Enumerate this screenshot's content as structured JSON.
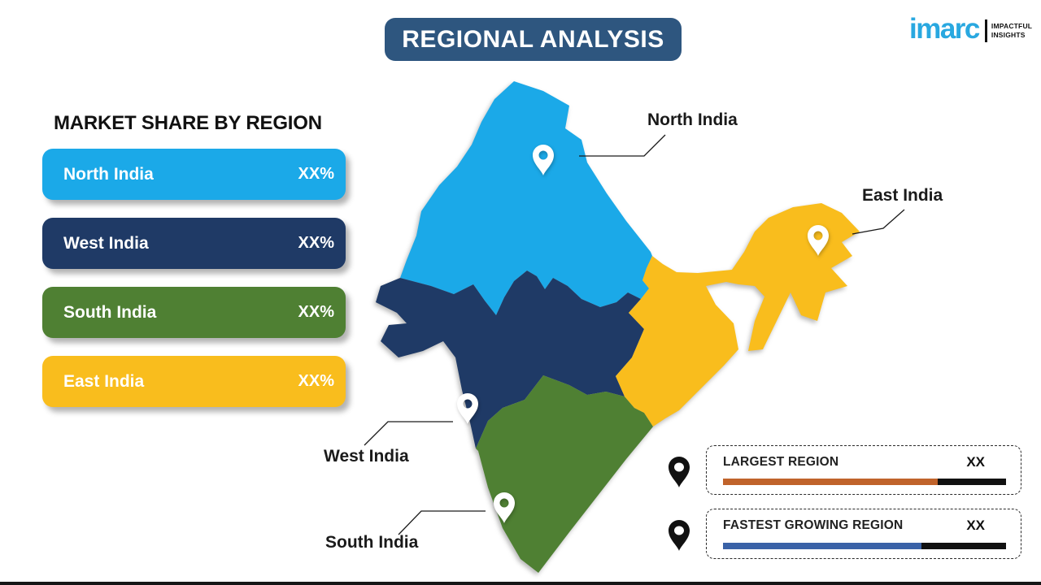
{
  "title": "REGIONAL ANALYSIS",
  "logo": {
    "brand": "imarc",
    "tagline1": "IMPACTFUL",
    "tagline2": "INSIGHTS",
    "brand_color": "#29A8E0"
  },
  "panel": {
    "heading": "MARKET SHARE BY REGION",
    "regions": [
      {
        "name": "North India",
        "value": "XX%",
        "color": "#1BA9E8"
      },
      {
        "name": "West India",
        "value": "XX%",
        "color": "#1F3A66"
      },
      {
        "name": "South India",
        "value": "XX%",
        "color": "#4F8033"
      },
      {
        "name": "East India",
        "value": "XX%",
        "color": "#F9BD1D"
      }
    ]
  },
  "map": {
    "labels": {
      "north": "North India",
      "east": "East India",
      "west": "West India",
      "south": "South India"
    }
  },
  "legend": [
    {
      "label": "LARGEST REGION",
      "value": "XX",
      "bar_color": "#C0632B",
      "bar_percent": 76
    },
    {
      "label": "FASTEST GROWING REGION",
      "value": "XX",
      "bar_color": "#3A62A7",
      "bar_percent": 70
    }
  ],
  "chart_data": {
    "type": "choropleth_map",
    "title": "REGIONAL ANALYSIS",
    "subtitle": "MARKET SHARE BY REGION",
    "categories": [
      "North India",
      "West India",
      "South India",
      "East India"
    ],
    "values": [
      "XX%",
      "XX%",
      "XX%",
      "XX%"
    ],
    "region_colors": [
      "#1BA9E8",
      "#1F3A66",
      "#4F8033",
      "#F9BD1D"
    ],
    "legend_position": "bottom-right",
    "annotations": [
      "LARGEST REGION: XX",
      "FASTEST GROWING REGION: XX"
    ]
  }
}
